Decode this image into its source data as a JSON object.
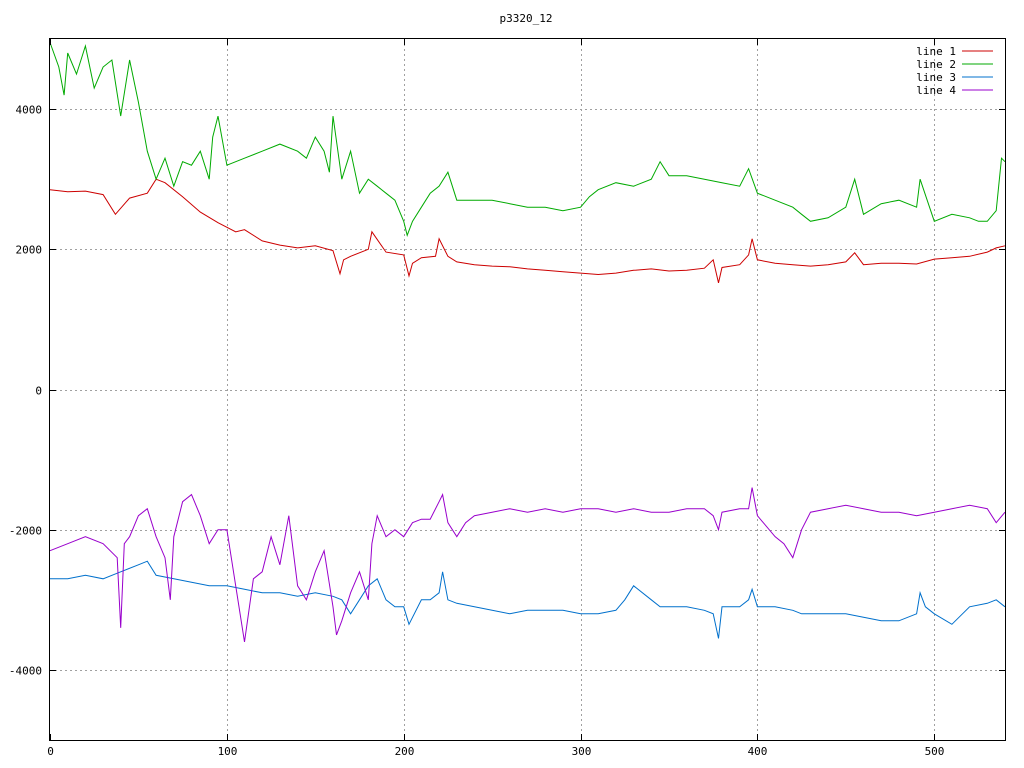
{
  "chart_data": {
    "type": "line",
    "title": "p3320_12",
    "xlabel": "",
    "ylabel": "",
    "xlim": [
      0,
      540
    ],
    "ylim": [
      -5000,
      5000
    ],
    "x_ticks": [
      0,
      100,
      200,
      300,
      400,
      500
    ],
    "y_ticks": [
      -4000,
      -2000,
      0,
      2000,
      4000
    ],
    "grid": true,
    "legend": "top-right",
    "series": [
      {
        "name": "line 1",
        "color": "#cc0000",
        "x": [
          0,
          10,
          20,
          30,
          37,
          45,
          55,
          60,
          65,
          75,
          85,
          95,
          105,
          110,
          120,
          130,
          140,
          150,
          160,
          164,
          166,
          170,
          180,
          182,
          190,
          200,
          203,
          205,
          210,
          218,
          220,
          225,
          230,
          240,
          250,
          260,
          270,
          280,
          290,
          300,
          310,
          320,
          330,
          340,
          350,
          360,
          370,
          375,
          378,
          380,
          390,
          395,
          397,
          400,
          410,
          420,
          430,
          440,
          450,
          455,
          460,
          470,
          480,
          490,
          500,
          510,
          520,
          530,
          535,
          540
        ],
        "values": [
          2850,
          2820,
          2830,
          2780,
          2500,
          2730,
          2800,
          3000,
          2950,
          2750,
          2530,
          2380,
          2250,
          2280,
          2120,
          2060,
          2020,
          2050,
          1980,
          1650,
          1850,
          1900,
          2000,
          2250,
          1960,
          1920,
          1620,
          1800,
          1880,
          1900,
          2150,
          1900,
          1820,
          1780,
          1760,
          1750,
          1720,
          1700,
          1680,
          1660,
          1640,
          1660,
          1700,
          1720,
          1690,
          1700,
          1730,
          1850,
          1520,
          1740,
          1780,
          1920,
          2150,
          1850,
          1800,
          1780,
          1760,
          1780,
          1820,
          1950,
          1780,
          1800,
          1800,
          1790,
          1860,
          1880,
          1900,
          1960,
          2020,
          2050
        ]
      },
      {
        "name": "line 2",
        "color": "#00aa00",
        "x": [
          0,
          5,
          8,
          10,
          15,
          20,
          25,
          30,
          35,
          40,
          45,
          50,
          55,
          60,
          65,
          70,
          75,
          80,
          85,
          90,
          92,
          95,
          100,
          110,
          120,
          130,
          140,
          145,
          150,
          155,
          158,
          160,
          165,
          170,
          175,
          180,
          185,
          190,
          195,
          200,
          202,
          205,
          210,
          215,
          220,
          225,
          230,
          240,
          250,
          260,
          270,
          280,
          290,
          300,
          305,
          310,
          320,
          330,
          340,
          345,
          350,
          360,
          370,
          380,
          390,
          395,
          400,
          410,
          420,
          425,
          430,
          440,
          450,
          455,
          460,
          470,
          480,
          490,
          492,
          500,
          510,
          520,
          525,
          530,
          535,
          538,
          540
        ],
        "values": [
          4950,
          4600,
          4200,
          4800,
          4500,
          4900,
          4300,
          4600,
          4700,
          3900,
          4700,
          4100,
          3400,
          3000,
          3300,
          2900,
          3250,
          3200,
          3400,
          3000,
          3600,
          3900,
          3200,
          3300,
          3400,
          3500,
          3400,
          3300,
          3600,
          3400,
          3100,
          3900,
          3000,
          3400,
          2800,
          3000,
          2900,
          2800,
          2700,
          2400,
          2200,
          2400,
          2600,
          2800,
          2900,
          3100,
          2700,
          2700,
          2700,
          2650,
          2600,
          2600,
          2550,
          2600,
          2750,
          2850,
          2950,
          2900,
          3000,
          3250,
          3050,
          3050,
          3000,
          2950,
          2900,
          3150,
          2800,
          2700,
          2600,
          2500,
          2400,
          2450,
          2600,
          3000,
          2500,
          2650,
          2700,
          2600,
          3000,
          2400,
          2500,
          2450,
          2400,
          2400,
          2550,
          3300,
          3250
        ]
      },
      {
        "name": "line 3",
        "color": "#0070cc",
        "x": [
          0,
          10,
          20,
          30,
          40,
          50,
          55,
          60,
          70,
          80,
          90,
          100,
          110,
          120,
          130,
          140,
          150,
          160,
          165,
          170,
          175,
          180,
          185,
          190,
          195,
          200,
          203,
          210,
          215,
          220,
          222,
          225,
          230,
          240,
          250,
          260,
          270,
          280,
          290,
          300,
          310,
          320,
          325,
          330,
          340,
          345,
          350,
          360,
          370,
          375,
          378,
          380,
          390,
          395,
          397,
          400,
          410,
          420,
          425,
          430,
          440,
          450,
          460,
          470,
          480,
          490,
          492,
          495,
          500,
          510,
          520,
          530,
          535,
          540
        ],
        "values": [
          -2700,
          -2700,
          -2650,
          -2700,
          -2600,
          -2500,
          -2450,
          -2650,
          -2700,
          -2750,
          -2800,
          -2800,
          -2850,
          -2900,
          -2900,
          -2950,
          -2900,
          -2950,
          -3000,
          -3200,
          -3000,
          -2800,
          -2700,
          -3000,
          -3100,
          -3100,
          -3350,
          -3000,
          -3000,
          -2900,
          -2600,
          -3000,
          -3050,
          -3100,
          -3150,
          -3200,
          -3150,
          -3150,
          -3150,
          -3200,
          -3200,
          -3150,
          -3000,
          -2800,
          -3000,
          -3100,
          -3100,
          -3100,
          -3150,
          -3200,
          -3550,
          -3100,
          -3100,
          -3000,
          -2850,
          -3100,
          -3100,
          -3150,
          -3200,
          -3200,
          -3200,
          -3200,
          -3250,
          -3300,
          -3300,
          -3200,
          -2900,
          -3100,
          -3200,
          -3350,
          -3100,
          -3050,
          -3000,
          -3100
        ]
      },
      {
        "name": "line 4",
        "color": "#9900cc",
        "x": [
          0,
          10,
          20,
          30,
          38,
          40,
          42,
          45,
          50,
          55,
          60,
          65,
          68,
          70,
          75,
          80,
          85,
          90,
          95,
          100,
          105,
          110,
          115,
          120,
          125,
          130,
          135,
          140,
          145,
          150,
          155,
          160,
          162,
          165,
          170,
          175,
          180,
          182,
          185,
          190,
          195,
          200,
          205,
          210,
          215,
          220,
          222,
          225,
          230,
          235,
          240,
          250,
          260,
          270,
          280,
          290,
          300,
          310,
          320,
          330,
          340,
          350,
          360,
          370,
          375,
          378,
          380,
          390,
          395,
          397,
          400,
          410,
          415,
          420,
          425,
          430,
          440,
          450,
          460,
          470,
          480,
          490,
          500,
          510,
          520,
          530,
          535,
          540
        ],
        "values": [
          -2300,
          -2200,
          -2100,
          -2200,
          -2400,
          -3400,
          -2200,
          -2100,
          -1800,
          -1700,
          -2100,
          -2400,
          -3000,
          -2100,
          -1600,
          -1500,
          -1800,
          -2200,
          -2000,
          -2000,
          -2800,
          -3600,
          -2700,
          -2600,
          -2100,
          -2500,
          -1800,
          -2800,
          -3000,
          -2600,
          -2300,
          -3100,
          -3500,
          -3300,
          -2900,
          -2600,
          -3000,
          -2200,
          -1800,
          -2100,
          -2000,
          -2100,
          -1900,
          -1850,
          -1850,
          -1600,
          -1500,
          -1900,
          -2100,
          -1900,
          -1800,
          -1750,
          -1700,
          -1750,
          -1700,
          -1750,
          -1700,
          -1700,
          -1750,
          -1700,
          -1750,
          -1750,
          -1700,
          -1700,
          -1800,
          -2000,
          -1750,
          -1700,
          -1700,
          -1400,
          -1800,
          -2100,
          -2200,
          -2400,
          -2000,
          -1750,
          -1700,
          -1650,
          -1700,
          -1750,
          -1750,
          -1800,
          -1750,
          -1700,
          -1650,
          -1700,
          -1900,
          -1750
        ]
      }
    ]
  }
}
